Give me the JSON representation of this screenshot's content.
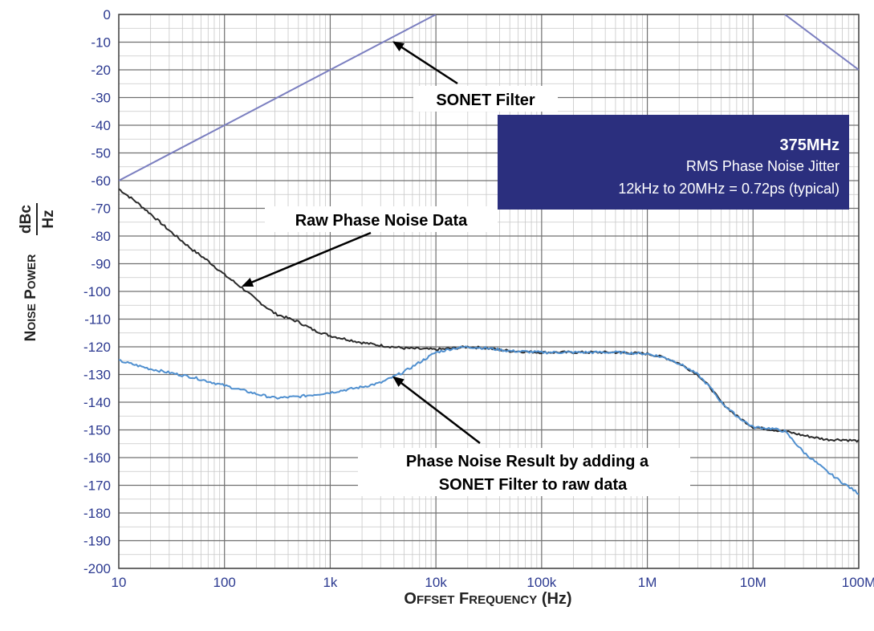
{
  "chart_data": {
    "type": "line",
    "xlabel": "Offset Frequency (Hz)",
    "ylabel_main": "Noise Power",
    "ylabel_unit_numerator": "dBc",
    "ylabel_unit_denominator": "Hz",
    "x_scale": "log",
    "xlim": [
      10,
      100000000
    ],
    "ylim": [
      -200,
      0
    ],
    "grid": true,
    "x_tick_labels": [
      "10",
      "100",
      "1k",
      "10k",
      "100k",
      "1M",
      "10M",
      "100M"
    ],
    "y_tick_labels": [
      "0",
      "-10",
      "-20",
      "-30",
      "-40",
      "-50",
      "-60",
      "-70",
      "-80",
      "-90",
      "-100",
      "-110",
      "-120",
      "-130",
      "-140",
      "-150",
      "-160",
      "-170",
      "-180",
      "-190",
      "-200"
    ],
    "series": [
      {
        "key": "sonet_rising",
        "color": "#7b7fc0",
        "points": [
          [
            10,
            -60
          ],
          [
            10000,
            0
          ]
        ]
      },
      {
        "key": "sonet_falling",
        "color": "#7b7fc0",
        "points": [
          [
            20000000,
            0
          ],
          [
            100000000,
            -20
          ]
        ]
      },
      {
        "key": "raw",
        "color": "#2a2a2a",
        "points": [
          [
            10,
            -63
          ],
          [
            15,
            -68
          ],
          [
            20,
            -72
          ],
          [
            30,
            -78
          ],
          [
            50,
            -85
          ],
          [
            70,
            -89
          ],
          [
            100,
            -94
          ],
          [
            150,
            -99
          ],
          [
            200,
            -103
          ],
          [
            300,
            -108
          ],
          [
            500,
            -111
          ],
          [
            700,
            -114
          ],
          [
            1000,
            -116
          ],
          [
            2000,
            -118.5
          ],
          [
            3000,
            -119.5
          ],
          [
            5000,
            -120.5
          ],
          [
            10000,
            -121
          ],
          [
            15000,
            -120.5
          ],
          [
            20000,
            -120
          ],
          [
            30000,
            -120.5
          ],
          [
            50000,
            -121.5
          ],
          [
            100000,
            -122
          ],
          [
            200000,
            -122
          ],
          [
            500000,
            -122
          ],
          [
            1000000,
            -122.5
          ],
          [
            1500000,
            -124
          ],
          [
            2000000,
            -126
          ],
          [
            3000000,
            -130
          ],
          [
            4000000,
            -135
          ],
          [
            5000000,
            -140
          ],
          [
            7000000,
            -145
          ],
          [
            10000000,
            -149
          ],
          [
            20000000,
            -150.5
          ],
          [
            30000000,
            -152
          ],
          [
            50000000,
            -153.5
          ],
          [
            70000000,
            -153.5
          ],
          [
            100000000,
            -154
          ]
        ]
      },
      {
        "key": "filtered",
        "color": "#4f8fcf",
        "points": [
          [
            10,
            -125
          ],
          [
            20,
            -128
          ],
          [
            50,
            -131
          ],
          [
            100,
            -134
          ],
          [
            200,
            -137
          ],
          [
            300,
            -138.5
          ],
          [
            500,
            -138
          ],
          [
            1000,
            -136.5
          ],
          [
            2000,
            -134.5
          ],
          [
            3000,
            -133
          ],
          [
            5000,
            -129
          ],
          [
            10000,
            -122
          ],
          [
            15000,
            -120.5
          ],
          [
            20000,
            -120
          ],
          [
            30000,
            -120.5
          ],
          [
            50000,
            -121.5
          ],
          [
            100000,
            -122
          ],
          [
            200000,
            -122
          ],
          [
            500000,
            -122
          ],
          [
            1000000,
            -122.5
          ],
          [
            1500000,
            -124
          ],
          [
            2000000,
            -126
          ],
          [
            3000000,
            -130
          ],
          [
            4000000,
            -135
          ],
          [
            5000000,
            -140
          ],
          [
            7000000,
            -145
          ],
          [
            10000000,
            -149
          ],
          [
            15000000,
            -149.5
          ],
          [
            20000000,
            -150.5
          ],
          [
            30000000,
            -158
          ],
          [
            50000000,
            -165
          ],
          [
            70000000,
            -169
          ],
          [
            100000000,
            -173
          ]
        ]
      }
    ],
    "annotations": {
      "sonet": {
        "text": "SONET Filter",
        "target": [
          4000,
          -10
        ]
      },
      "raw": {
        "text": "Raw Phase Noise Data",
        "target": [
          150,
          -98
        ]
      },
      "result_line1": "Phase Noise Result by adding a",
      "result_line2": "SONET Filter to raw data",
      "result_target": [
        4000,
        -131
      ]
    },
    "info_box": {
      "title": "375MHz",
      "line1": "RMS Phase Noise Jitter",
      "line2": "12kHz to 20MHz = 0.72ps (typical)",
      "background": "#2b2f7e"
    }
  }
}
